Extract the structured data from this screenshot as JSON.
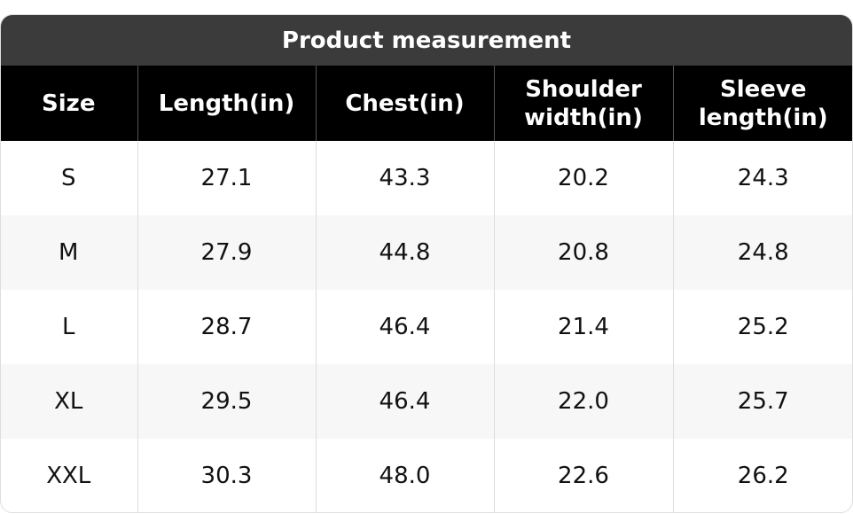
{
  "header": {
    "title": "Product measurement"
  },
  "table": {
    "columns": [
      "Size",
      "Length(in)",
      "Chest(in)",
      "Shoulder width(in)",
      "Sleeve length(in)"
    ],
    "rows": [
      [
        "S",
        "27.1",
        "43.3",
        "20.2",
        "24.3"
      ],
      [
        "M",
        "27.9",
        "44.8",
        "20.8",
        "24.8"
      ],
      [
        "L",
        "28.7",
        "46.4",
        "21.4",
        "25.2"
      ],
      [
        "XL",
        "29.5",
        "46.4",
        "22.0",
        "25.7"
      ],
      [
        "XXL",
        "30.3",
        "48.0",
        "22.6",
        "26.2"
      ]
    ]
  }
}
